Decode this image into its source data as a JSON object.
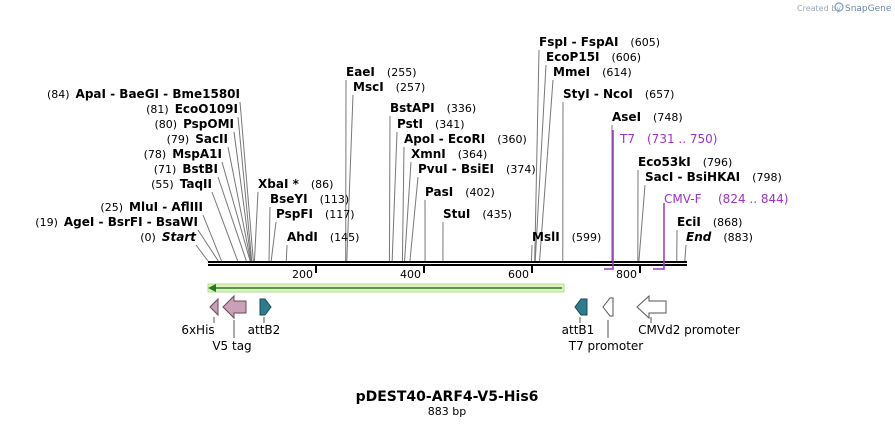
{
  "credit": {
    "text": "Created by",
    "brand": "SnapGene"
  },
  "title": "pDEST40-ARF4-V5-His6",
  "length_label": "883 bp",
  "ruler_ticks": [
    {
      "label": "200",
      "bp": 200
    },
    {
      "label": "400",
      "bp": 400
    },
    {
      "label": "600",
      "bp": 600
    },
    {
      "label": "800",
      "bp": 800
    }
  ],
  "sites": [
    {
      "pos": "(84)",
      "name": "ApaI  -  BaeGI  -  Bme1580I",
      "bp": 84
    },
    {
      "pos": "(81)",
      "name": "EcoO109I",
      "bp": 81
    },
    {
      "pos": "(80)",
      "name": "PspOMI",
      "bp": 80
    },
    {
      "pos": "(79)",
      "name": "SacII",
      "bp": 79
    },
    {
      "pos": "(78)",
      "name": "MspA1I",
      "bp": 78
    },
    {
      "pos": "(71)",
      "name": "BstBI",
      "bp": 71
    },
    {
      "pos": "(55)",
      "name": "TaqII",
      "bp": 55
    },
    {
      "pos": "(25)",
      "name": "MluI  -  AflIII",
      "bp": 25
    },
    {
      "pos": "(19)",
      "name": "AgeI  -  BsrFI  -  BsaWI",
      "bp": 19
    },
    {
      "pos": "(0)",
      "name": "Start",
      "bp": 0,
      "italic": true
    },
    {
      "pos": "(86)",
      "name": "XbaI *",
      "bp": 86,
      "right": true
    },
    {
      "pos": "(113)",
      "name": "BseYI",
      "bp": 113,
      "right": true
    },
    {
      "pos": "(117)",
      "name": "PspFI",
      "bp": 117,
      "right": true
    },
    {
      "pos": "(145)",
      "name": "AhdI",
      "bp": 145,
      "right": true
    },
    {
      "pos": "(255)",
      "name": "EaeI",
      "bp": 255,
      "right": true
    },
    {
      "pos": "(257)",
      "name": "MscI",
      "bp": 257,
      "right": true
    },
    {
      "pos": "(336)",
      "name": "BstAPI",
      "bp": 336,
      "right": true
    },
    {
      "pos": "(341)",
      "name": "PstI",
      "bp": 341,
      "right": true
    },
    {
      "pos": "(360)",
      "name": "ApoI  -  EcoRI",
      "bp": 360,
      "right": true
    },
    {
      "pos": "(364)",
      "name": "XmnI",
      "bp": 364,
      "right": true
    },
    {
      "pos": "(374)",
      "name": "PvuI  -  BsiEI",
      "bp": 374,
      "right": true
    },
    {
      "pos": "(402)",
      "name": "PasI",
      "bp": 402,
      "right": true
    },
    {
      "pos": "(435)",
      "name": "StuI",
      "bp": 435,
      "right": true
    },
    {
      "pos": "(599)",
      "name": "MslI",
      "bp": 599,
      "right": true
    },
    {
      "pos": "(605)",
      "name": "FspI  -  FspAI",
      "bp": 605,
      "right": true
    },
    {
      "pos": "(606)",
      "name": "EcoP15I",
      "bp": 606,
      "right": true
    },
    {
      "pos": "(614)",
      "name": "MmeI",
      "bp": 614,
      "right": true
    },
    {
      "pos": "(657)",
      "name": "StyI  -  NcoI",
      "bp": 657,
      "right": true
    },
    {
      "pos": "(748)",
      "name": "AseI",
      "bp": 748,
      "right": true
    },
    {
      "pos": "(796)",
      "name": "Eco53kI",
      "bp": 796,
      "right": true
    },
    {
      "pos": "(798)",
      "name": "SacI  -  BsiHKAI",
      "bp": 798,
      "right": true
    },
    {
      "pos": "(868)",
      "name": "EciI",
      "bp": 868,
      "right": true
    },
    {
      "pos": "(883)",
      "name": "End",
      "bp": 883,
      "right": true,
      "italic": true
    }
  ],
  "primers": [
    {
      "name": "T7",
      "range": "(731 .. 750)",
      "start": 731,
      "end": 750
    },
    {
      "name": "CMV-F",
      "range": "(824 .. 844)",
      "start": 824,
      "end": 844
    }
  ],
  "features": [
    {
      "name": "6xHis",
      "type": "tag"
    },
    {
      "name": "V5 tag",
      "type": "tag"
    },
    {
      "name": "attB2",
      "type": "att"
    },
    {
      "name": "attB1",
      "type": "att"
    },
    {
      "name": "T7 promoter",
      "type": "promoter"
    },
    {
      "name": "CMVd2 promoter",
      "type": "promoter"
    }
  ],
  "colors": {
    "primer": "#9933cc",
    "tag": "#c9a0b5",
    "att": "#2e7d8f",
    "orf": "#b5e08a",
    "credit": "#9aa8b8"
  }
}
